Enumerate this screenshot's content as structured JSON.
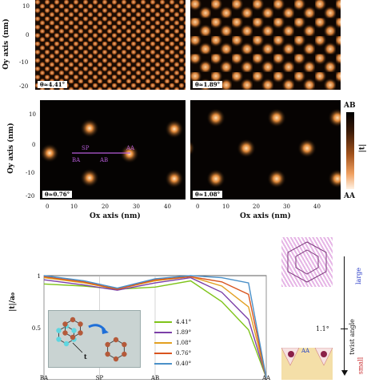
{
  "panels": [
    {
      "label": "θ≈4.41°"
    },
    {
      "label": "θ≈1.89°"
    },
    {
      "label": "θ≈0.76°"
    },
    {
      "label": "θ≈1.08°"
    }
  ],
  "y_axis_title": "Oy axis (nm)",
  "x_axis_title": "Ox axis (nm)",
  "y_ticks": [
    "10",
    "0",
    "-10",
    "-20"
  ],
  "x_ticks": [
    "0",
    "10",
    "20",
    "30",
    "40"
  ],
  "colorbar": {
    "top": "AB",
    "middle": "|t|",
    "bottom": "AA"
  },
  "path_labels": {
    "sp": "SP",
    "aa": "AA",
    "ba": "BA",
    "ab": "AB"
  },
  "twist_scale": {
    "large": "large",
    "middle": "twist angle",
    "value": "1.1°",
    "small": "small",
    "aa": "AA"
  },
  "chart_data": {
    "type": "line",
    "ylabel": "|t|/a₀",
    "x_categories": [
      "BA",
      "SP",
      "AB",
      "AA"
    ],
    "y_ticks": [
      "1",
      "0.5"
    ],
    "ylim": [
      0,
      1
    ],
    "series": [
      {
        "name": "4.41°",
        "color": "#7fc41a",
        "points": [
          [
            0,
            0.92
          ],
          [
            0.18,
            0.9
          ],
          [
            0.33,
            0.87
          ],
          [
            0.5,
            0.89
          ],
          [
            0.66,
            0.95
          ],
          [
            0.8,
            0.75
          ],
          [
            0.92,
            0.48
          ],
          [
            1,
            0.02
          ]
        ]
      },
      {
        "name": "1.89°",
        "color": "#7b3fa8",
        "points": [
          [
            0,
            0.96
          ],
          [
            0.18,
            0.91
          ],
          [
            0.33,
            0.86
          ],
          [
            0.5,
            0.93
          ],
          [
            0.66,
            0.98
          ],
          [
            0.8,
            0.84
          ],
          [
            0.92,
            0.58
          ],
          [
            1,
            0.02
          ]
        ]
      },
      {
        "name": "1.08°",
        "color": "#e2a020",
        "points": [
          [
            0,
            0.98
          ],
          [
            0.18,
            0.93
          ],
          [
            0.33,
            0.87
          ],
          [
            0.5,
            0.95
          ],
          [
            0.66,
            0.99
          ],
          [
            0.8,
            0.9
          ],
          [
            0.92,
            0.7
          ],
          [
            1,
            0.02
          ]
        ]
      },
      {
        "name": "0.76°",
        "color": "#d9541e",
        "points": [
          [
            0,
            0.99
          ],
          [
            0.18,
            0.94
          ],
          [
            0.33,
            0.87
          ],
          [
            0.5,
            0.96
          ],
          [
            0.66,
            0.99
          ],
          [
            0.8,
            0.94
          ],
          [
            0.92,
            0.82
          ],
          [
            1,
            0.02
          ]
        ]
      },
      {
        "name": "0.40°",
        "color": "#4a90c8",
        "points": [
          [
            0,
            1
          ],
          [
            0.18,
            0.95
          ],
          [
            0.33,
            0.88
          ],
          [
            0.5,
            0.97
          ],
          [
            0.66,
            1
          ],
          [
            0.8,
            0.98
          ],
          [
            0.92,
            0.93
          ],
          [
            1,
            0.02
          ]
        ]
      }
    ]
  },
  "inset_labels": {
    "t": "t"
  }
}
